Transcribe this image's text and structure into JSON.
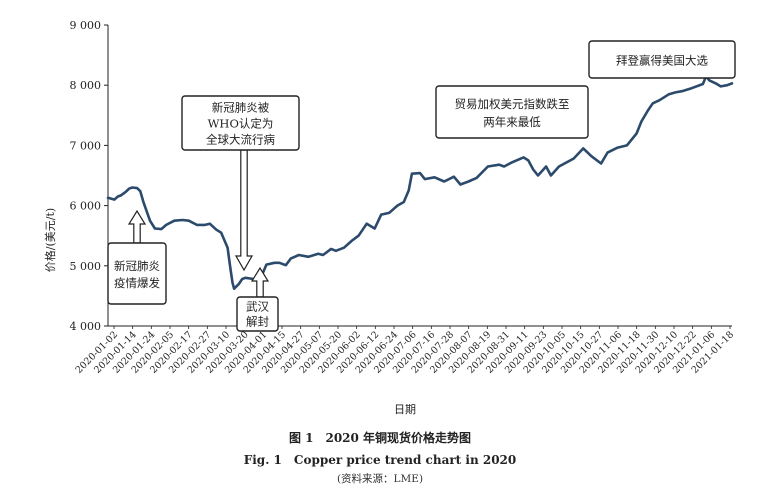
{
  "chart_data": {
    "type": "line",
    "ylabel": "价格/(美元/t)",
    "xlabel": "日期",
    "ylim": [
      4000,
      9000
    ],
    "yticks": [
      4000,
      5000,
      6000,
      7000,
      8000,
      9000
    ],
    "ytick_labels": [
      "4 000",
      "5 000",
      "6 000",
      "7 000",
      "8 000",
      "9 000"
    ],
    "line_color": "#2c4a6b",
    "grid": false,
    "x_tick_labels": [
      "2020-01-02",
      "2020-01-14",
      "2020-01-24",
      "2020-02-05",
      "2020-02-17",
      "2020-02-27",
      "2020-03-10",
      "2020-03-20",
      "2020-04-01",
      "2020-04-15",
      "2020-04-27",
      "2020-05-07",
      "2020-05-20",
      "2020-06-02",
      "2020-06-12",
      "2020-06-24",
      "2020-07-06",
      "2020-07-16",
      "2020-07-28",
      "2020-08-07",
      "2020-08-19",
      "2020-08-31",
      "2020-09-11",
      "2020-09-23",
      "2020-10-05",
      "2020-10-15",
      "2020-10-27",
      "2020-11-06",
      "2020-11-18",
      "2020-11-30",
      "2020-12-10",
      "2020-12-22",
      "2021-01-06",
      "2021-01-18"
    ],
    "series": [
      {
        "points": [
          [
            "2020-01-02",
            6130
          ],
          [
            "2020-01-06",
            6100
          ],
          [
            "2020-01-08",
            6150
          ],
          [
            "2020-01-10",
            6170
          ],
          [
            "2020-01-13",
            6230
          ],
          [
            "2020-01-15",
            6280
          ],
          [
            "2020-01-17",
            6300
          ],
          [
            "2020-01-20",
            6290
          ],
          [
            "2020-01-22",
            6240
          ],
          [
            "2020-01-24",
            6050
          ],
          [
            "2020-01-28",
            5750
          ],
          [
            "2020-01-31",
            5620
          ],
          [
            "2020-02-04",
            5610
          ],
          [
            "2020-02-07",
            5680
          ],
          [
            "2020-02-12",
            5750
          ],
          [
            "2020-02-17",
            5760
          ],
          [
            "2020-02-21",
            5750
          ],
          [
            "2020-02-26",
            5680
          ],
          [
            "2020-03-02",
            5680
          ],
          [
            "2020-03-05",
            5700
          ],
          [
            "2020-03-09",
            5600
          ],
          [
            "2020-03-12",
            5550
          ],
          [
            "2020-03-16",
            5300
          ],
          [
            "2020-03-17",
            5100
          ],
          [
            "2020-03-18",
            4900
          ],
          [
            "2020-03-19",
            4720
          ],
          [
            "2020-03-20",
            4620
          ],
          [
            "2020-03-23",
            4700
          ],
          [
            "2020-03-25",
            4780
          ],
          [
            "2020-03-27",
            4800
          ],
          [
            "2020-04-01",
            4780
          ],
          [
            "2020-04-06",
            4830
          ],
          [
            "2020-04-09",
            5020
          ],
          [
            "2020-04-14",
            5050
          ],
          [
            "2020-04-17",
            5050
          ],
          [
            "2020-04-21",
            5010
          ],
          [
            "2020-04-24",
            5120
          ],
          [
            "2020-04-29",
            5180
          ],
          [
            "2020-05-05",
            5150
          ],
          [
            "2020-05-11",
            5200
          ],
          [
            "2020-05-14",
            5180
          ],
          [
            "2020-05-19",
            5280
          ],
          [
            "2020-05-22",
            5250
          ],
          [
            "2020-05-27",
            5300
          ],
          [
            "2020-06-01",
            5420
          ],
          [
            "2020-06-05",
            5500
          ],
          [
            "2020-06-10",
            5700
          ],
          [
            "2020-06-15",
            5620
          ],
          [
            "2020-06-19",
            5850
          ],
          [
            "2020-06-24",
            5880
          ],
          [
            "2020-06-29",
            6000
          ],
          [
            "2020-07-03",
            6060
          ],
          [
            "2020-07-06",
            6250
          ],
          [
            "2020-07-08",
            6530
          ],
          [
            "2020-07-13",
            6540
          ],
          [
            "2020-07-16",
            6440
          ],
          [
            "2020-07-22",
            6470
          ],
          [
            "2020-07-28",
            6400
          ],
          [
            "2020-08-03",
            6480
          ],
          [
            "2020-08-07",
            6350
          ],
          [
            "2020-08-12",
            6400
          ],
          [
            "2020-08-17",
            6460
          ],
          [
            "2020-08-24",
            6650
          ],
          [
            "2020-08-31",
            6680
          ],
          [
            "2020-09-03",
            6650
          ],
          [
            "2020-09-08",
            6720
          ],
          [
            "2020-09-15",
            6800
          ],
          [
            "2020-09-18",
            6750
          ],
          [
            "2020-09-21",
            6600
          ],
          [
            "2020-09-24",
            6500
          ],
          [
            "2020-09-29",
            6650
          ],
          [
            "2020-10-02",
            6500
          ],
          [
            "2020-10-07",
            6650
          ],
          [
            "2020-10-14",
            6750
          ],
          [
            "2020-10-16",
            6780
          ],
          [
            "2020-10-22",
            6950
          ],
          [
            "2020-10-27",
            6820
          ],
          [
            "2020-11-02",
            6700
          ],
          [
            "2020-11-06",
            6880
          ],
          [
            "2020-11-12",
            6960
          ],
          [
            "2020-11-18",
            7000
          ],
          [
            "2020-11-24",
            7200
          ],
          [
            "2020-11-27",
            7400
          ],
          [
            "2020-12-01",
            7580
          ],
          [
            "2020-12-04",
            7700
          ],
          [
            "2020-12-08",
            7750
          ],
          [
            "2020-12-14",
            7850
          ],
          [
            "2020-12-18",
            7880
          ],
          [
            "2020-12-22",
            7900
          ],
          [
            "2020-12-28",
            7950
          ],
          [
            "2021-01-04",
            8020
          ],
          [
            "2021-01-06",
            8150
          ],
          [
            "2021-01-08",
            8080
          ],
          [
            "2021-01-12",
            8030
          ],
          [
            "2021-01-15",
            7980
          ],
          [
            "2021-01-19",
            8000
          ],
          [
            "2021-01-22",
            8030
          ]
        ]
      }
    ],
    "annotations": [
      {
        "lines": [
          "新冠肺炎",
          "疫情爆发"
        ]
      },
      {
        "lines": [
          "新冠肺炎被",
          "WHO认定为",
          "全球大流行病"
        ]
      },
      {
        "lines": [
          "武汉",
          "解封"
        ]
      },
      {
        "lines": [
          "贸易加权美元指数跌至",
          "两年来最低"
        ]
      },
      {
        "lines": [
          "拜登赢得美国大选"
        ]
      }
    ]
  },
  "caption": {
    "zh": "图 1　2020 年铜现货价格走势图",
    "en": "Fig. 1　Copper price trend chart in 2020",
    "source": "(资料来源：LME)"
  }
}
